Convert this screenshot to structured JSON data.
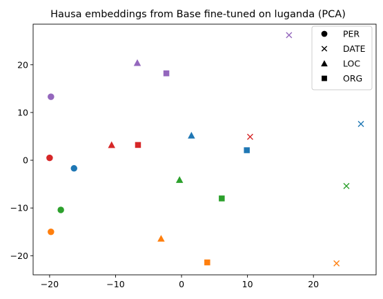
{
  "chart_data": {
    "type": "scatter",
    "title": "Hausa embeddings from Base fine-tuned on luganda (PCA)",
    "xlabel": "",
    "ylabel": "",
    "xlim": [
      -22.5,
      29.5
    ],
    "ylim": [
      -24.0,
      28.5
    ],
    "xticks": [
      -20,
      -10,
      0,
      10,
      20
    ],
    "yticks": [
      -20,
      -10,
      0,
      10,
      20
    ],
    "grid": false,
    "legend_position": "top-right",
    "legend": [
      {
        "label": "PER",
        "marker": "circle"
      },
      {
        "label": "DATE",
        "marker": "x"
      },
      {
        "label": "LOC",
        "marker": "triangle"
      },
      {
        "label": "ORG",
        "marker": "square"
      }
    ],
    "colors": {
      "blue": "#1f77b4",
      "orange": "#ff7f0e",
      "green": "#2ca02c",
      "red": "#d62728",
      "purple": "#9467bd"
    },
    "points": [
      {
        "x": -19.8,
        "y": 13.3,
        "marker": "circle",
        "color": "purple"
      },
      {
        "x": -20.0,
        "y": 0.5,
        "marker": "circle",
        "color": "red"
      },
      {
        "x": -16.3,
        "y": -1.7,
        "marker": "circle",
        "color": "blue"
      },
      {
        "x": -18.3,
        "y": -10.4,
        "marker": "circle",
        "color": "green"
      },
      {
        "x": -19.8,
        "y": -15.0,
        "marker": "circle",
        "color": "orange"
      },
      {
        "x": 16.3,
        "y": 26.2,
        "marker": "x",
        "color": "purple"
      },
      {
        "x": 10.4,
        "y": 4.9,
        "marker": "x",
        "color": "red"
      },
      {
        "x": 27.2,
        "y": 7.6,
        "marker": "x",
        "color": "blue"
      },
      {
        "x": 25.0,
        "y": -5.4,
        "marker": "x",
        "color": "green"
      },
      {
        "x": 23.5,
        "y": -21.6,
        "marker": "x",
        "color": "orange"
      },
      {
        "x": -6.7,
        "y": 20.4,
        "marker": "triangle",
        "color": "purple"
      },
      {
        "x": -10.6,
        "y": 3.2,
        "marker": "triangle",
        "color": "red"
      },
      {
        "x": 1.5,
        "y": 5.2,
        "marker": "triangle",
        "color": "blue"
      },
      {
        "x": -0.3,
        "y": -4.1,
        "marker": "triangle",
        "color": "green"
      },
      {
        "x": -3.1,
        "y": -16.4,
        "marker": "triangle",
        "color": "orange"
      },
      {
        "x": -2.3,
        "y": 18.2,
        "marker": "square",
        "color": "purple"
      },
      {
        "x": -6.6,
        "y": 3.2,
        "marker": "square",
        "color": "red"
      },
      {
        "x": 9.9,
        "y": 2.1,
        "marker": "square",
        "color": "blue"
      },
      {
        "x": 6.1,
        "y": -8.0,
        "marker": "square",
        "color": "green"
      },
      {
        "x": 3.9,
        "y": -21.4,
        "marker": "square",
        "color": "orange"
      }
    ]
  }
}
